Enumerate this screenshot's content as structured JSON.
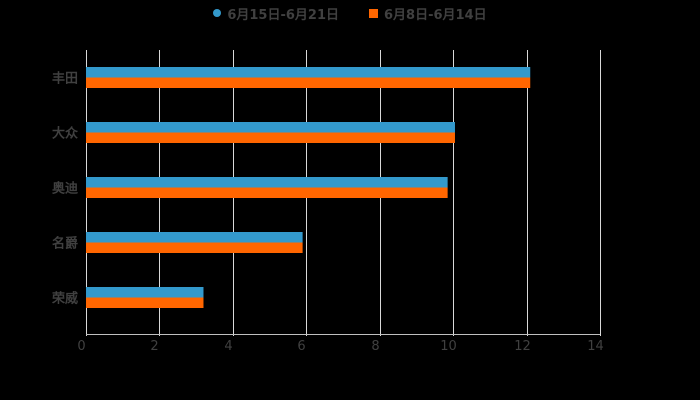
{
  "chart_data": {
    "type": "bar",
    "orientation": "horizontal",
    "title": "",
    "xlabel": "",
    "ylabel": "",
    "categories": [
      "丰田",
      "大众",
      "奥迪",
      "名爵",
      "荣威"
    ],
    "series": [
      {
        "name": "6月15日-6月21日",
        "color": "#3399CC",
        "values": [
          12.1,
          10.05,
          9.85,
          5.9,
          3.2
        ]
      },
      {
        "name": "6月8日-6月14日",
        "color": "#FF6600",
        "values": [
          12.1,
          10.05,
          9.85,
          5.9,
          3.2
        ]
      }
    ],
    "xlim": [
      0,
      14
    ],
    "xticks": [
      "0",
      "2",
      "4",
      "6",
      "8",
      "10",
      "12",
      "14"
    ],
    "grid": true,
    "legend_position": "top"
  },
  "legend": {
    "items": [
      {
        "label": "6月15日-6月21日",
        "color": "#3399CC",
        "marker": "circle"
      },
      {
        "label": "6月8日-6月14日",
        "color": "#FF6600",
        "marker": "square"
      }
    ]
  }
}
